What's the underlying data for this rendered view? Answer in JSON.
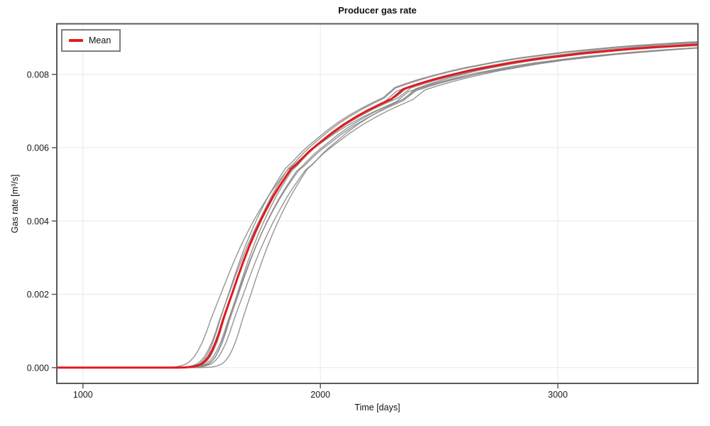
{
  "figure": {
    "title": "Producer gas rate",
    "x_axis": {
      "label": "Time [days]",
      "tick_labels": [
        "1000",
        "2000",
        "3000"
      ],
      "tick_values": [
        1000,
        2000,
        3000
      ]
    },
    "y_axis": {
      "label": "Gas rate [m³/s]",
      "tick_labels": [
        "0.000",
        "0.002",
        "0.004",
        "0.006",
        "0.008"
      ],
      "tick_values": [
        0,
        0.002,
        0.004,
        0.006,
        0.008
      ]
    },
    "legend": {
      "entries": [
        {
          "label": "Mean",
          "color": "#e41a1c"
        }
      ]
    },
    "colors": {
      "mean_line": "#e41a1c",
      "realization_line": "#898989",
      "spine": "#5a5a5a",
      "grid": "#e8e8e8",
      "tick_text": "#1a1a1a",
      "background": "#ffffff",
      "legend_border": "#7f7f7f"
    }
  },
  "chart_data": {
    "type": "line",
    "title": "Producer gas rate",
    "xlabel": "Time [days]",
    "ylabel": "Gas rate [m³/s]",
    "xlim": [
      890,
      3590
    ],
    "ylim": [
      -0.00043,
      0.00938
    ],
    "grid": true,
    "legend_position": "upper left",
    "series": [
      {
        "name": "Mean",
        "color": "#e41a1c",
        "width": 3,
        "t": [
          890,
          1300,
          1400,
          1440,
          1460,
          1480,
          1500,
          1515,
          1530,
          1545,
          1560,
          1575,
          1590,
          1610,
          1630,
          1650,
          1675,
          1700,
          1725,
          1750,
          1775,
          1800,
          1825,
          1850,
          1875,
          1900,
          1925,
          1950,
          1975,
          2000,
          2050,
          2100,
          2150,
          2200,
          2250,
          2300,
          2350,
          2400,
          2450,
          2500,
          2550,
          2600,
          2650,
          2700,
          2750,
          2800,
          2850,
          2900,
          2950,
          3000,
          3100,
          3200,
          3300,
          3400,
          3500,
          3600,
          3700,
          3800
        ],
        "q": [
          0,
          0,
          0,
          1e-05,
          2e-05,
          5e-05,
          0.0001,
          0.00018,
          0.0003,
          0.00048,
          0.0007,
          0.00098,
          0.0013,
          0.00168,
          0.00205,
          0.00243,
          0.00288,
          0.0033,
          0.00368,
          0.00403,
          0.00435,
          0.00465,
          0.00492,
          0.00517,
          0.00541,
          0.00555,
          0.00572,
          0.00588,
          0.00602,
          0.00615,
          0.00641,
          0.00664,
          0.00684,
          0.00702,
          0.00718,
          0.00733,
          0.0076,
          0.00771,
          0.00781,
          0.0079,
          0.00798,
          0.00806,
          0.00813,
          0.00819,
          0.00825,
          0.00831,
          0.00836,
          0.00841,
          0.00845,
          0.00849,
          0.00857,
          0.00863,
          0.00869,
          0.00874,
          0.00878,
          0.00882,
          0.00885,
          0.00888
        ]
      }
    ],
    "realizations": {
      "description": "Ensemble realization curves (gray); approximated as time-shift/stretch/scale transforms of the Mean series",
      "count": 10,
      "color": "#898989",
      "width": 1.4,
      "opacity": 0.9,
      "base_series": "Mean",
      "t0": 1500,
      "transforms": [
        {
          "dt": -65,
          "stretch": 1.14,
          "scale": 0.998
        },
        {
          "dt": -10,
          "stretch": 0.97,
          "scale": 1.006
        },
        {
          "dt": -5,
          "stretch": 1.03,
          "scale": 1.008
        },
        {
          "dt": 8,
          "stretch": 0.95,
          "scale": 1.003
        },
        {
          "dt": 18,
          "stretch": 1.04,
          "scale": 0.994
        },
        {
          "dt": 28,
          "stretch": 0.99,
          "scale": 0.99
        },
        {
          "dt": 40,
          "stretch": 1.06,
          "scale": 0.997
        },
        {
          "dt": 85,
          "stretch": 0.96,
          "scale": 1.001
        },
        {
          "dt": -20,
          "stretch": 1.06,
          "scale": 1.004
        },
        {
          "dt": 30,
          "stretch": 0.93,
          "scale": 0.992
        }
      ]
    }
  }
}
